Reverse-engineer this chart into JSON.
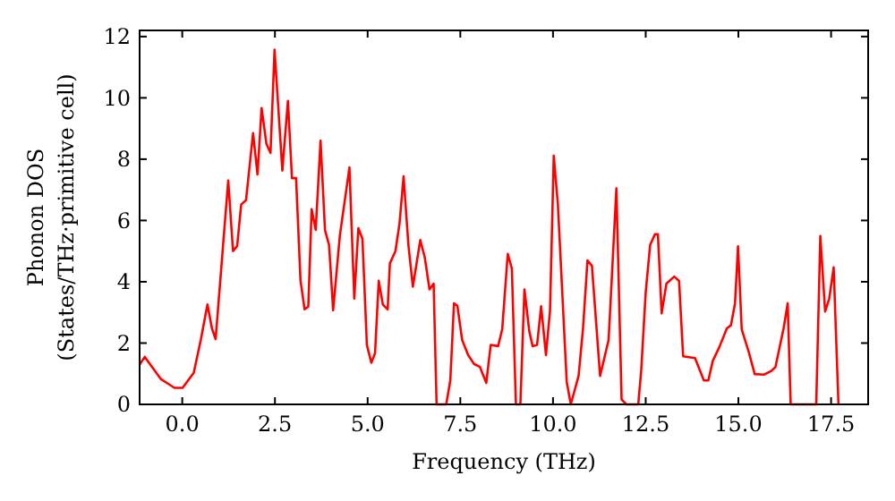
{
  "chart_data": {
    "type": "line",
    "xlabel": "Frequency (THz)",
    "ylabel": "Phonon DOS\n(States/THz·primitive cell)",
    "xlim": [
      -1.15,
      18.5
    ],
    "ylim": [
      0,
      12.2
    ],
    "xticks": [
      {
        "value": 0,
        "label": "0.0"
      },
      {
        "value": 2.5,
        "label": "2.5"
      },
      {
        "value": 5,
        "label": "5.0"
      },
      {
        "value": 7.5,
        "label": "7.5"
      },
      {
        "value": 10,
        "label": "10.0"
      },
      {
        "value": 12.5,
        "label": "12.5"
      },
      {
        "value": 15,
        "label": "15.0"
      },
      {
        "value": 17.5,
        "label": "17.5"
      }
    ],
    "yticks": [
      0,
      2,
      4,
      6,
      8,
      10,
      12
    ],
    "grid": false,
    "line_style": "solid",
    "series": [
      {
        "color": "#ff0000",
        "x": [
          -1.15,
          -1.01,
          -0.58,
          -0.21,
          0.01,
          0.31,
          0.5,
          0.68,
          0.8,
          0.9,
          1.24,
          1.37,
          1.48,
          1.59,
          1.72,
          1.91,
          2.03,
          2.14,
          2.27,
          2.38,
          2.49,
          2.7,
          2.85,
          2.96,
          3.07,
          3.19,
          3.3,
          3.4,
          3.49,
          3.6,
          3.73,
          3.85,
          3.96,
          4.07,
          4.25,
          4.51,
          4.64,
          4.75,
          4.86,
          4.98,
          5.1,
          5.2,
          5.3,
          5.41,
          5.54,
          5.6,
          5.75,
          5.86,
          5.97,
          6.1,
          6.22,
          6.42,
          6.54,
          6.67,
          6.78,
          6.86,
          7.12,
          7.23,
          7.33,
          7.42,
          7.55,
          7.71,
          7.87,
          8.03,
          8.2,
          8.32,
          8.52,
          8.63,
          8.78,
          8.89,
          9.0,
          9.12,
          9.23,
          9.36,
          9.45,
          9.57,
          9.68,
          9.81,
          9.92,
          10.02,
          10.13,
          10.37,
          10.48,
          10.69,
          10.81,
          10.93,
          11.05,
          11.27,
          11.5,
          11.71,
          11.85,
          11.98,
          12.3,
          12.38,
          12.5,
          12.62,
          12.75,
          12.83,
          12.93,
          13.06,
          13.27,
          13.4,
          13.51,
          13.83,
          14.07,
          14.19,
          14.31,
          14.48,
          14.69,
          14.8,
          14.91,
          14.99,
          15.09,
          15.28,
          15.44,
          15.69,
          15.89,
          16.0,
          16.22,
          16.33,
          16.41,
          17.1,
          17.21,
          17.34,
          17.45,
          17.57,
          17.7
        ],
        "values": [
          1.3,
          1.55,
          0.83,
          0.54,
          0.54,
          1.03,
          2.1,
          3.26,
          2.48,
          2.13,
          7.3,
          5.0,
          5.16,
          6.52,
          6.66,
          8.85,
          7.5,
          9.67,
          8.5,
          8.2,
          11.57,
          7.63,
          9.9,
          7.38,
          7.38,
          4.04,
          3.1,
          3.19,
          6.37,
          5.69,
          8.6,
          5.69,
          5.2,
          3.07,
          5.5,
          7.73,
          3.45,
          5.75,
          5.4,
          1.94,
          1.36,
          1.67,
          4.03,
          3.26,
          3.1,
          4.6,
          5.0,
          5.9,
          7.44,
          5.2,
          3.84,
          5.36,
          4.8,
          3.75,
          3.94,
          0,
          0,
          0.78,
          3.3,
          3.22,
          2.1,
          1.61,
          1.32,
          1.22,
          0.7,
          1.94,
          1.9,
          2.45,
          4.91,
          4.43,
          0,
          0,
          3.75,
          2.39,
          1.9,
          1.94,
          3.2,
          1.61,
          3.07,
          8.11,
          6.56,
          0.74,
          0,
          0.93,
          2.48,
          4.7,
          4.52,
          0.93,
          2.1,
          7.05,
          0.16,
          0,
          0,
          1.12,
          3.65,
          5.2,
          5.55,
          5.55,
          2.97,
          3.94,
          4.17,
          4.03,
          1.57,
          1.51,
          0.78,
          0.78,
          1.42,
          1.85,
          2.48,
          2.58,
          3.3,
          5.16,
          2.45,
          1.71,
          0.99,
          0.97,
          1.09,
          1.22,
          2.48,
          3.3,
          0,
          0,
          5.49,
          3.03,
          3.45,
          4.47,
          0
        ]
      }
    ]
  }
}
